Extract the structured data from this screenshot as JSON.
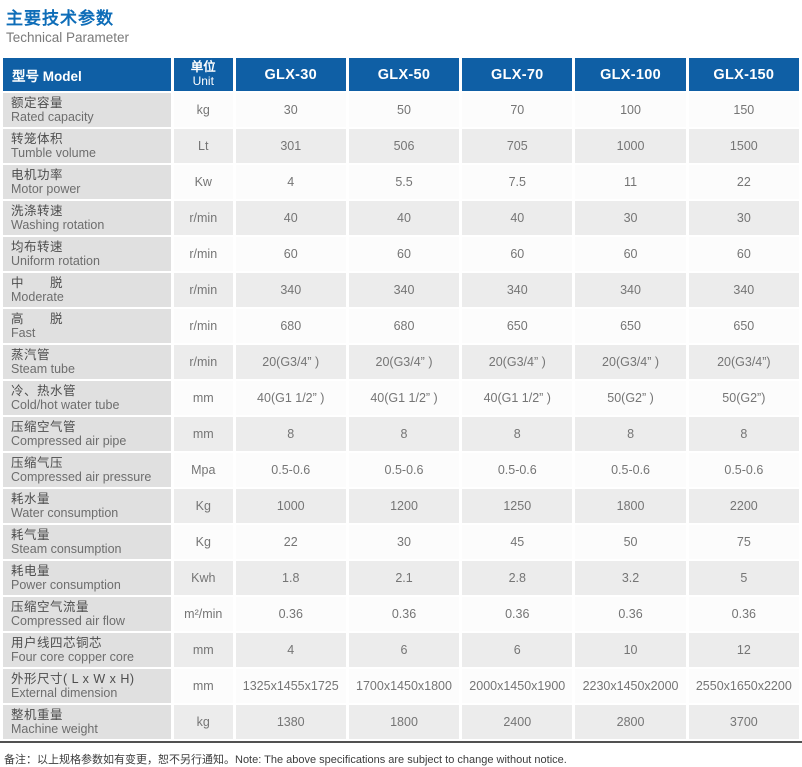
{
  "page": {
    "title_zh": "主要技术参数",
    "title_en": "Technical Parameter",
    "note": "备注：以上规格参数如有变更，恕不另行通知。Note: The above specifications are subject to change without notice."
  },
  "colors": {
    "title_blue": "#0e6db8",
    "header_blue": "#0f5fa5",
    "label_gray": "#e0e0e0",
    "alt_row_gray": "#ececec",
    "bottom_rule": "#515151"
  },
  "table": {
    "header": {
      "model_label": "型号 Model",
      "unit_label_zh": "单位",
      "unit_label_en": "Unit",
      "models": [
        "GLX-30",
        "GLX-50",
        "GLX-70",
        "GLX-100",
        "GLX-150"
      ]
    },
    "rows": [
      {
        "zh": "额定容量",
        "en": "Rated capacity",
        "unit": "kg",
        "values": [
          "30",
          "50",
          "70",
          "100",
          "150"
        ]
      },
      {
        "zh": "转笼体积",
        "en": "Tumble volume",
        "unit": "Lt",
        "values": [
          "301",
          "506",
          "705",
          "1000",
          "1500"
        ]
      },
      {
        "zh": "电机功率",
        "en": "Motor power",
        "unit": "Kw",
        "values": [
          "4",
          "5.5",
          "7.5",
          "11",
          "22"
        ]
      },
      {
        "zh": "洗涤转速",
        "en": "Washing rotation",
        "unit": "r/min",
        "values": [
          "40",
          "40",
          "40",
          "30",
          "30"
        ]
      },
      {
        "zh": "均布转速",
        "en": "Uniform rotation",
        "unit": "r/min",
        "values": [
          "60",
          "60",
          "60",
          "60",
          "60"
        ]
      },
      {
        "zh": "中　　脱",
        "en": "Moderate",
        "unit": "r/min",
        "values": [
          "340",
          "340",
          "340",
          "340",
          "340"
        ]
      },
      {
        "zh": "高　　脱",
        "en": "Fast",
        "unit": "r/min",
        "values": [
          "680",
          "680",
          "650",
          "650",
          "650"
        ]
      },
      {
        "zh": "蒸汽管",
        "en": "Steam tube",
        "unit": "r/min",
        "values": [
          "20(G3/4” )",
          "20(G3/4” )",
          "20(G3/4” )",
          "20(G3/4” )",
          "20(G3/4”)"
        ]
      },
      {
        "zh": "冷、热水管",
        "en": "Cold/hot water tube",
        "unit": "mm",
        "values": [
          "40(G1 1/2” )",
          "40(G1 1/2” )",
          "40(G1 1/2” )",
          "50(G2” )",
          "50(G2”)"
        ]
      },
      {
        "zh": "压缩空气管",
        "en": "Compressed air pipe",
        "unit": "mm",
        "values": [
          "8",
          "8",
          "8",
          "8",
          "8"
        ]
      },
      {
        "zh": "压缩气压",
        "en": "Compressed air pressure",
        "unit": "Mpa",
        "values": [
          "0.5-0.6",
          "0.5-0.6",
          "0.5-0.6",
          "0.5-0.6",
          "0.5-0.6"
        ]
      },
      {
        "zh": "耗水量",
        "en": "Water consumption",
        "unit": "Kg",
        "values": [
          "1000",
          "1200",
          "1250",
          "1800",
          "2200"
        ]
      },
      {
        "zh": "耗气量",
        "en": "Steam consumption",
        "unit": "Kg",
        "values": [
          "22",
          "30",
          "45",
          "50",
          "75"
        ]
      },
      {
        "zh": "耗电量",
        "en": "Power consumption",
        "unit": "Kwh",
        "values": [
          "1.8",
          "2.1",
          "2.8",
          "3.2",
          "5"
        ]
      },
      {
        "zh": "压缩空气流量",
        "en": "Compressed air flow",
        "unit": "m²/min",
        "values": [
          "0.36",
          "0.36",
          "0.36",
          "0.36",
          "0.36"
        ]
      },
      {
        "zh": "用户线四芯铜芯",
        "en": "Four core copper core",
        "unit": "mm",
        "values": [
          "4",
          "6",
          "6",
          "10",
          "12"
        ]
      },
      {
        "zh": "外形尺寸( L x W x H)",
        "en": "External dimension",
        "unit": "mm",
        "values": [
          "1325x1455x1725",
          "1700x1450x1800",
          "2000x1450x1900",
          "2230x1450x2000",
          "2550x1650x2200"
        ]
      },
      {
        "zh": "整机重量",
        "en": "Machine weight",
        "unit": "kg",
        "values": [
          "1380",
          "1800",
          "2400",
          "2800",
          "3700"
        ]
      }
    ]
  }
}
